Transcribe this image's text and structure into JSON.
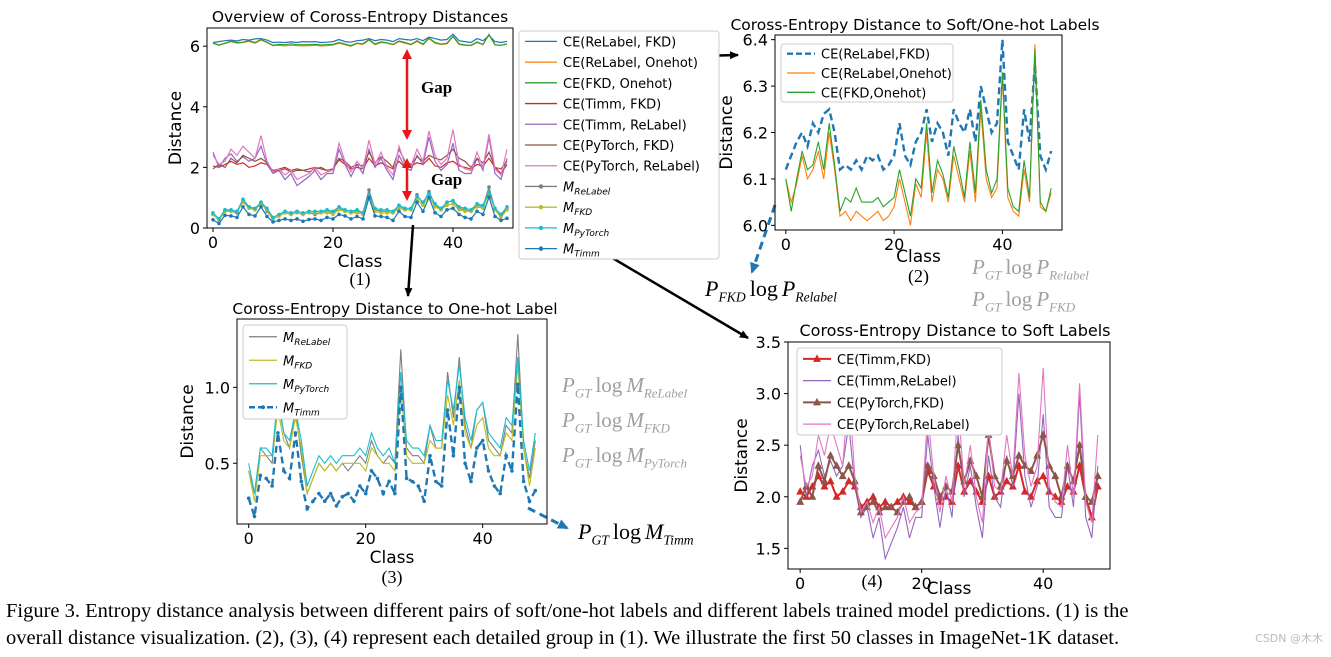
{
  "chart_data": [
    {
      "id": "p1",
      "type": "line",
      "title": "Overview of Coross-Entropy Distances",
      "xlabel": "Class",
      "ylabel": "Distance",
      "sublabel": "(1)",
      "xlim": [
        -1,
        50
      ],
      "ylim": [
        0,
        6.6
      ],
      "xticks": [
        0,
        20,
        40
      ],
      "yticks": [
        0,
        2,
        4,
        6
      ],
      "annotations": [
        "Gap",
        "Gap"
      ],
      "legend": [
        "CE(ReLabel, FKD)",
        "CE(ReLabel, Onehot)",
        "CE(FKD, Onehot)",
        "CE(Timm, FKD)",
        "CE(Timm, ReLabel)",
        "CE(PyTorch, FKD)",
        "CE(PyTorch, ReLabel)",
        "M_ReLabel",
        "M_FKD",
        "M_PyTorch",
        "M_Timm"
      ],
      "series_refs": [
        "CE(ReLabel,FKD)",
        "CE(ReLabel,Onehot)",
        "CE(FKD,Onehot)",
        "CE(Timm,FKD)",
        "CE(Timm,ReLabel)",
        "CE(PyTorch,FKD)",
        "CE(PyTorch,ReLabel)",
        "M_ReLabel",
        "M_FKD",
        "M_PyTorch",
        "M_Timm"
      ]
    },
    {
      "id": "p2",
      "type": "line",
      "title": "Coross-Entropy Distance to Soft/One-hot Labels",
      "xlabel": "Class",
      "ylabel": "Distance",
      "sublabel": "(2)",
      "xlim": [
        -2,
        51
      ],
      "ylim": [
        5.99,
        6.41
      ],
      "xticks": [
        0,
        20,
        40
      ],
      "yticks": [
        6.0,
        6.1,
        6.2,
        6.3,
        6.4
      ],
      "legend": [
        "CE(ReLabel,FKD)",
        "CE(ReLabel,Onehot)",
        "CE(FKD,Onehot)"
      ],
      "series_refs": [
        "CE(ReLabel,FKD)",
        "CE(ReLabel,Onehot)",
        "CE(FKD,Onehot)"
      ],
      "side_notes": [
        "P_GT log P_Relabel",
        "P_GT log P_FKD"
      ]
    },
    {
      "id": "p3",
      "type": "line",
      "title": "Coross-Entropy Distance to One-hot Label",
      "xlabel": "Class",
      "ylabel": "Distance",
      "sublabel": "(3)",
      "xlim": [
        -2,
        51
      ],
      "ylim": [
        0.1,
        1.45
      ],
      "xticks": [
        0,
        20,
        40
      ],
      "yticks": [
        0.5,
        1.0
      ],
      "legend": [
        "M_ReLabel",
        "M_FKD",
        "M_PyTorch",
        "M_Timm"
      ],
      "series_refs": [
        "M_ReLabel",
        "M_FKD",
        "M_PyTorch",
        "M_Timm"
      ],
      "side_notes": [
        "P_GT log M_ReLabel",
        "P_GT log M_FKD",
        "P_GT log M_PyTorch"
      ]
    },
    {
      "id": "p4",
      "type": "line",
      "title": "Coross-Entropy Distance to Soft Labels",
      "xlabel": "Class",
      "ylabel": "Distance",
      "sublabel": "(4)",
      "xlim": [
        -2,
        51
      ],
      "ylim": [
        1.3,
        3.5
      ],
      "xticks": [
        0,
        20,
        40
      ],
      "yticks": [
        1.5,
        2.0,
        2.5,
        3.0,
        3.5
      ],
      "legend": [
        "CE(Timm,FKD)",
        "CE(Timm,ReLabel)",
        "CE(PyTorch,FKD)",
        "CE(PyTorch,ReLabel)"
      ],
      "series_refs": [
        "CE(Timm,FKD)",
        "CE(Timm,ReLabel)",
        "CE(PyTorch,FKD)",
        "CE(PyTorch,ReLabel)"
      ]
    }
  ],
  "series": {
    "x": [
      0,
      1,
      2,
      3,
      4,
      5,
      6,
      7,
      8,
      9,
      10,
      11,
      12,
      13,
      14,
      15,
      16,
      17,
      18,
      19,
      20,
      21,
      22,
      23,
      24,
      25,
      26,
      27,
      28,
      29,
      30,
      31,
      32,
      33,
      34,
      35,
      36,
      37,
      38,
      39,
      40,
      41,
      42,
      43,
      44,
      45,
      46,
      47,
      48,
      49
    ],
    "CE(ReLabel,FKD)": [
      6.12,
      6.15,
      6.18,
      6.2,
      6.17,
      6.22,
      6.2,
      6.24,
      6.25,
      6.2,
      6.12,
      6.13,
      6.12,
      6.14,
      6.12,
      6.15,
      6.14,
      6.15,
      6.12,
      6.13,
      6.15,
      6.22,
      6.15,
      6.13,
      6.18,
      6.2,
      6.25,
      6.18,
      6.22,
      6.2,
      6.15,
      6.25,
      6.22,
      6.2,
      6.25,
      6.18,
      6.3,
      6.25,
      6.2,
      6.22,
      6.4,
      6.18,
      6.15,
      6.12,
      6.25,
      6.18,
      6.35,
      6.15,
      6.12,
      6.16
    ],
    "CE(ReLabel,Onehot)": [
      6.1,
      6.05,
      6.09,
      6.15,
      6.1,
      6.12,
      6.16,
      6.1,
      6.2,
      6.12,
      6.02,
      6.03,
      6.01,
      6.03,
      6.02,
      6.01,
      6.02,
      6.03,
      6.01,
      6.02,
      6.04,
      6.1,
      6.05,
      6.0,
      6.09,
      6.06,
      6.2,
      6.05,
      6.12,
      6.1,
      6.05,
      6.15,
      6.1,
      6.05,
      6.16,
      6.05,
      6.25,
      6.1,
      6.06,
      6.08,
      6.32,
      6.06,
      6.03,
      6.02,
      6.12,
      6.05,
      6.39,
      6.04,
      6.03,
      6.07
    ],
    "CE(FKD,Onehot)": [
      6.1,
      6.03,
      6.1,
      6.16,
      6.12,
      6.13,
      6.18,
      6.12,
      6.22,
      6.13,
      6.03,
      6.06,
      6.05,
      6.08,
      6.05,
      6.05,
      6.05,
      6.06,
      6.04,
      6.05,
      6.06,
      6.12,
      6.07,
      6.02,
      6.1,
      6.08,
      6.22,
      6.07,
      6.14,
      6.11,
      6.06,
      6.17,
      6.12,
      6.06,
      6.18,
      6.07,
      6.27,
      6.12,
      6.07,
      6.1,
      6.33,
      6.08,
      6.04,
      6.03,
      6.14,
      6.06,
      6.38,
      6.05,
      6.03,
      6.08
    ],
    "CE(Timm,FKD)": [
      2.05,
      2.0,
      2.1,
      2.2,
      2.1,
      2.15,
      2.0,
      2.05,
      2.15,
      2.1,
      1.9,
      1.95,
      2.0,
      1.9,
      1.95,
      1.9,
      1.95,
      2.0,
      1.95,
      1.9,
      1.95,
      2.25,
      2.1,
      1.95,
      2.0,
      1.95,
      2.3,
      2.05,
      2.15,
      2.05,
      1.95,
      2.2,
      2.0,
      2.05,
      2.15,
      2.1,
      2.3,
      2.05,
      2.0,
      2.15,
      2.2,
      2.05,
      2.0,
      1.95,
      2.1,
      2.05,
      2.3,
      2.0,
      1.8,
      2.1
    ],
    "CE(Timm,ReLabel)": [
      2.5,
      2.0,
      2.3,
      2.45,
      2.2,
      2.35,
      2.2,
      2.3,
      2.7,
      2.1,
      1.8,
      1.9,
      1.6,
      1.8,
      1.4,
      1.55,
      1.7,
      1.9,
      1.6,
      1.8,
      1.8,
      2.6,
      2.1,
      1.7,
      2.1,
      1.8,
      2.6,
      2.0,
      2.3,
      1.9,
      1.6,
      2.4,
      2.0,
      1.9,
      2.4,
      2.1,
      3.0,
      2.2,
      1.9,
      2.1,
      2.8,
      1.9,
      1.8,
      1.8,
      2.3,
      1.9,
      3.0,
      1.8,
      1.6,
      2.3
    ],
    "CE(PyTorch,FKD)": [
      1.95,
      2.1,
      2.0,
      2.3,
      2.15,
      2.4,
      2.3,
      2.2,
      2.3,
      2.15,
      1.85,
      1.9,
      1.95,
      1.85,
      1.9,
      1.9,
      1.85,
      1.95,
      2.0,
      1.9,
      1.95,
      2.3,
      2.2,
      2.0,
      2.1,
      2.05,
      2.5,
      2.15,
      2.35,
      2.2,
      2.0,
      2.6,
      2.2,
      2.1,
      2.35,
      2.2,
      2.4,
      2.3,
      2.25,
      2.4,
      2.6,
      2.3,
      2.2,
      2.0,
      2.3,
      2.15,
      2.5,
      2.0,
      1.95,
      2.2
    ],
    "CE(PyTorch,ReLabel)": [
      2.4,
      2.1,
      2.2,
      2.6,
      2.4,
      2.7,
      2.5,
      2.3,
      3.05,
      2.2,
      1.85,
      1.95,
      1.75,
      1.9,
      1.6,
      1.7,
      1.8,
      2.0,
      1.75,
      1.85,
      1.9,
      2.8,
      2.2,
      1.85,
      2.2,
      1.95,
      2.9,
      2.1,
      2.5,
      2.0,
      1.75,
      2.7,
      2.1,
      2.05,
      2.6,
      2.2,
      3.2,
      2.4,
      2.1,
      2.3,
      3.25,
      2.1,
      1.95,
      1.9,
      2.5,
      2.0,
      3.1,
      1.95,
      1.75,
      2.6
    ],
    "M_ReLabel": [
      0.45,
      0.3,
      0.6,
      0.55,
      0.5,
      0.9,
      0.7,
      0.6,
      0.85,
      0.55,
      0.3,
      0.4,
      0.5,
      0.45,
      0.5,
      0.45,
      0.5,
      0.45,
      0.5,
      0.55,
      0.5,
      0.65,
      0.55,
      0.5,
      0.55,
      0.5,
      1.25,
      0.6,
      0.55,
      0.55,
      0.5,
      0.75,
      0.6,
      0.6,
      1.1,
      0.8,
      1.2,
      0.75,
      0.6,
      0.85,
      0.9,
      0.65,
      0.6,
      0.55,
      0.75,
      0.7,
      1.35,
      0.6,
      0.4,
      0.65
    ],
    "M_FKD": [
      0.45,
      0.25,
      0.55,
      0.55,
      0.55,
      0.85,
      0.65,
      0.6,
      0.8,
      0.6,
      0.3,
      0.4,
      0.5,
      0.45,
      0.5,
      0.45,
      0.5,
      0.5,
      0.5,
      0.5,
      0.45,
      0.6,
      0.55,
      0.5,
      0.5,
      0.45,
      1.0,
      0.55,
      0.5,
      0.5,
      0.5,
      0.65,
      0.6,
      0.6,
      0.95,
      0.75,
      1.05,
      0.7,
      0.6,
      0.75,
      0.8,
      0.6,
      0.55,
      0.55,
      0.7,
      0.65,
      1.15,
      0.6,
      0.35,
      0.6
    ],
    "M_PyTorch": [
      0.5,
      0.3,
      0.6,
      0.6,
      0.55,
      0.95,
      0.7,
      0.65,
      0.85,
      0.65,
      0.35,
      0.45,
      0.55,
      0.5,
      0.55,
      0.5,
      0.55,
      0.55,
      0.55,
      0.6,
      0.55,
      0.7,
      0.6,
      0.55,
      0.6,
      0.5,
      1.1,
      0.65,
      0.6,
      0.6,
      0.55,
      0.75,
      0.65,
      0.65,
      1.05,
      0.85,
      1.15,
      0.8,
      0.65,
      0.85,
      0.9,
      0.7,
      0.65,
      0.6,
      0.8,
      0.75,
      1.2,
      0.65,
      0.45,
      0.7
    ],
    "M_Timm": [
      0.27,
      0.15,
      0.42,
      0.4,
      0.35,
      0.7,
      0.45,
      0.4,
      0.7,
      0.38,
      0.2,
      0.25,
      0.3,
      0.25,
      0.3,
      0.22,
      0.28,
      0.3,
      0.25,
      0.35,
      0.3,
      0.45,
      0.4,
      0.3,
      0.38,
      0.3,
      1.0,
      0.4,
      0.38,
      0.35,
      0.25,
      0.55,
      0.38,
      0.35,
      0.85,
      0.55,
      1.0,
      0.5,
      0.38,
      0.6,
      0.65,
      0.45,
      0.35,
      0.3,
      0.55,
      0.45,
      1.02,
      0.38,
      0.25,
      0.32
    ]
  },
  "styles": {
    "CE(ReLabel,FKD)": {
      "p1": "#1f77b4",
      "p2": "#1f77b4",
      "dash2": true
    },
    "CE(ReLabel,Onehot)": {
      "p1": "#ff7f0e",
      "p2": "#ff7f0e"
    },
    "CE(FKD,Onehot)": {
      "p1": "#2ca02c",
      "p2": "#2ca02c"
    },
    "CE(Timm,FKD)": {
      "p1": "#d62728",
      "p4": "#d62728",
      "marker4": "tri"
    },
    "CE(Timm,ReLabel)": {
      "p1": "#9467bd",
      "p4": "#9467bd"
    },
    "CE(PyTorch,FKD)": {
      "p1": "#8c564b",
      "p4": "#8c564b",
      "marker4": "tri"
    },
    "CE(PyTorch,ReLabel)": {
      "p1": "#e377c2",
      "p4": "#e377c2"
    },
    "M_ReLabel": {
      "p1": "#7f7f7f",
      "p3": "#7f7f7f"
    },
    "M_FKD": {
      "p1": "#bcbd22",
      "p3": "#bcbd22"
    },
    "M_PyTorch": {
      "p1": "#17becf",
      "p3": "#17becf"
    },
    "M_Timm": {
      "p1": "#1f77b4",
      "p3": "#1f77b4",
      "dash3": true
    }
  },
  "overview_legend": {
    "entries": [
      {
        "text": "CE(ReLabel, FKD)",
        "color": "#1f77b4"
      },
      {
        "text": "CE(ReLabel, Onehot)",
        "color": "#ff7f0e"
      },
      {
        "text": "CE(FKD, Onehot)",
        "color": "#2ca02c"
      },
      {
        "text": "CE(Timm, FKD)",
        "color": "#d62728"
      },
      {
        "text": "CE(Timm, ReLabel)",
        "color": "#9467bd"
      },
      {
        "text": "CE(PyTorch, FKD)",
        "color": "#8c564b"
      },
      {
        "text": "CE(PyTorch, ReLabel)",
        "color": "#e377c2"
      }
    ],
    "model_entries": [
      {
        "main": "M",
        "sub": "ReLabel",
        "color": "#7f7f7f"
      },
      {
        "main": "M",
        "sub": "FKD",
        "color": "#bcbd22"
      },
      {
        "main": "M",
        "sub": "PyTorch",
        "color": "#17becf"
      },
      {
        "main": "M",
        "sub": "Timm",
        "color": "#1f77b4"
      }
    ]
  },
  "side_formulas": {
    "p_fkd_log_p_relabel": {
      "a": "P",
      "a_sub": "FKD",
      "mid": "log",
      "b": "P",
      "b_sub": "Relabel"
    },
    "p_gt_log_m_timm": {
      "a": "P",
      "a_sub": "GT",
      "mid": "log",
      "b": "M",
      "b_sub": "Timm"
    },
    "gray_p2": [
      {
        "a": "P",
        "a_sub": "GT",
        "mid": "log",
        "b": "P",
        "b_sub": "Relabel"
      },
      {
        "a": "P",
        "a_sub": "GT",
        "mid": "log",
        "b": "P",
        "b_sub": "FKD"
      }
    ],
    "gray_p3": [
      {
        "a": "P",
        "a_sub": "GT",
        "mid": "log",
        "b": "M",
        "b_sub": "ReLabel"
      },
      {
        "a": "P",
        "a_sub": "GT",
        "mid": "log",
        "b": "M",
        "b_sub": "FKD"
      },
      {
        "a": "P",
        "a_sub": "GT",
        "mid": "log",
        "b": "M",
        "b_sub": "PyTorch"
      }
    ]
  },
  "caption": {
    "line1": "Figure 3. Entropy distance analysis between different pairs of soft/one-hot labels and different labels trained model predictions. (1) is the",
    "line2": "overall distance visualization. (2), (3), (4) represent each detailed group in (1). We illustrate the first 50 classes in ImageNet-1K dataset."
  },
  "watermark": "CSDN @木木"
}
